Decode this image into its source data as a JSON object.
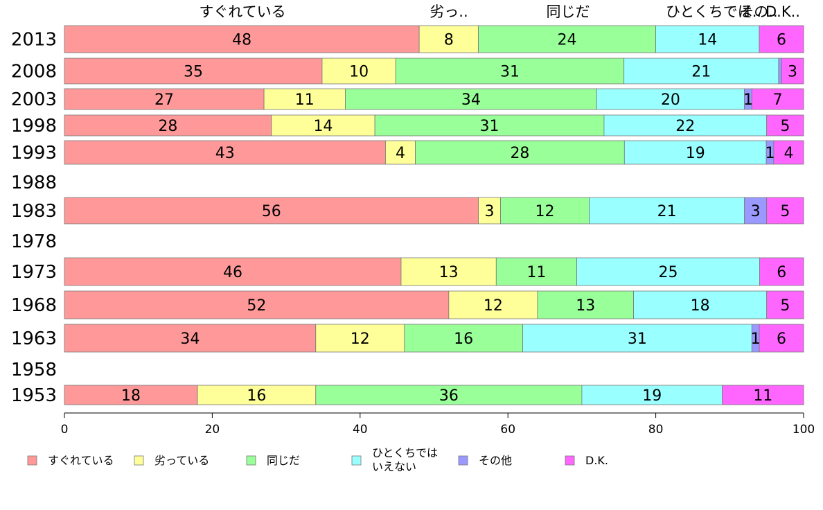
{
  "chart_data": {
    "type": "bar",
    "orientation": "horizontal",
    "stacked": true,
    "title": "",
    "xlabel": "",
    "ylabel": "",
    "xlim": [
      0,
      100
    ],
    "x_ticks": [
      "0",
      "20",
      "40",
      "60",
      "80",
      "100"
    ],
    "grid": false,
    "legend_position": "bottom",
    "top_labels": [
      "すぐれている",
      "劣っ..",
      "同じだ",
      "ひとくちでは..",
      "その..",
      "D.K.."
    ],
    "categories": [
      "2013",
      "2008",
      "2003",
      "1998",
      "1993",
      "1988",
      "1983",
      "1978",
      "1973",
      "1968",
      "1963",
      "1958",
      "1953"
    ],
    "series": [
      {
        "name": "すぐれている",
        "color": "#ff9999",
        "values": [
          48,
          35,
          27,
          28,
          43,
          null,
          56,
          null,
          46,
          52,
          34,
          null,
          18
        ]
      },
      {
        "name": "劣っている",
        "color": "#ffff99",
        "values": [
          8,
          10,
          11,
          14,
          4,
          null,
          3,
          null,
          13,
          12,
          12,
          null,
          16
        ]
      },
      {
        "name": "同じだ",
        "color": "#99ff99",
        "values": [
          24,
          31,
          34,
          31,
          28,
          null,
          12,
          null,
          11,
          13,
          16,
          null,
          36
        ]
      },
      {
        "name": "ひとくちでは\nいえない",
        "color": "#99ffff",
        "values": [
          14,
          21,
          20,
          22,
          19,
          null,
          21,
          null,
          25,
          18,
          31,
          null,
          19
        ]
      },
      {
        "name": "その他",
        "color": "#9999ff",
        "values": [
          0,
          0.4,
          1,
          0,
          1,
          null,
          3,
          null,
          0,
          0,
          1,
          null,
          0
        ]
      },
      {
        "name": "D.K.",
        "color": "#ff66ff",
        "values": [
          6,
          3,
          7,
          5,
          4,
          null,
          5,
          null,
          6,
          5,
          6,
          null,
          11
        ]
      }
    ],
    "value_labels": [
      [
        "48",
        "8",
        "24",
        "14",
        "",
        "6"
      ],
      [
        "35",
        "10",
        "31",
        "21",
        "",
        "3"
      ],
      [
        "27",
        "11",
        "34",
        "20",
        "1",
        "7"
      ],
      [
        "28",
        "14",
        "31",
        "22",
        "",
        "5"
      ],
      [
        "43",
        "4",
        "28",
        "19",
        "1",
        "4"
      ],
      [],
      [
        "56",
        "3",
        "12",
        "21",
        "3",
        "5"
      ],
      [],
      [
        "46",
        "13",
        "11",
        "25",
        "",
        "6"
      ],
      [
        "52",
        "12",
        "13",
        "18",
        "",
        "5"
      ],
      [
        "34",
        "12",
        "16",
        "31",
        "1",
        "6"
      ],
      [],
      [
        "18",
        "16",
        "36",
        "19",
        "",
        "11"
      ]
    ]
  }
}
